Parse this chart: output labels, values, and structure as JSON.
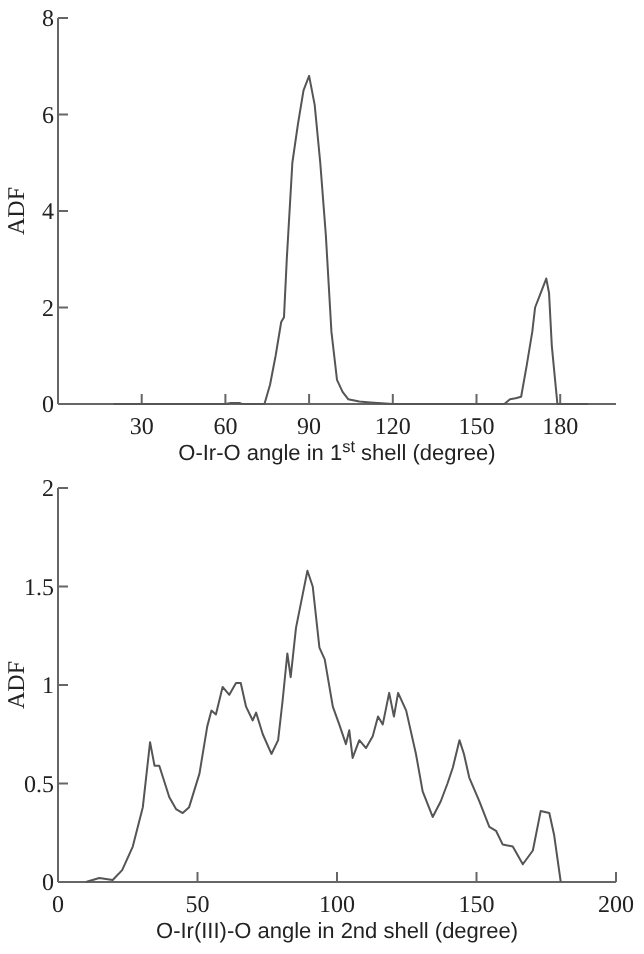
{
  "chart_data": [
    {
      "type": "line",
      "xlabel": "O-Ir-O angle in 1$^{st}$ shell (degree)",
      "ylabel": "ADF",
      "xlim": [
        0,
        200
      ],
      "ylim": [
        0,
        8
      ],
      "xticks": [
        30,
        60,
        90,
        120,
        150,
        180
      ],
      "yticks": [
        0,
        2,
        4,
        6,
        8
      ],
      "grid": false,
      "marker": "none",
      "line_style": "solid",
      "series": [
        {
          "color": "#555555",
          "x": [
            20,
            60,
            62,
            65,
            66,
            74,
            76,
            78,
            80,
            81,
            82,
            84,
            86,
            88,
            90,
            92,
            94,
            96,
            98,
            100,
            102,
            104,
            108,
            112,
            120,
            130,
            150,
            160,
            162,
            164,
            166,
            168,
            170,
            171,
            173,
            175,
            176,
            177,
            178,
            179,
            190
          ],
          "values": [
            0,
            0,
            0.02,
            0.02,
            0,
            0,
            0.4,
            1,
            1.7,
            1.8,
            3,
            5,
            5.8,
            6.5,
            6.8,
            6.2,
            5,
            3.5,
            1.5,
            0.5,
            0.25,
            0.1,
            0.05,
            0.03,
            0,
            0,
            0,
            0,
            0.1,
            0.12,
            0.15,
            0.8,
            1.5,
            2,
            2.3,
            2.6,
            2.3,
            1.2,
            0.6,
            0,
            0
          ]
        }
      ]
    },
    {
      "type": "line",
      "xlabel": "O-Ir(III)-O angle in 2nd shell (degree)",
      "ylabel": "ADF",
      "xlim": [
        0,
        200
      ],
      "ylim": [
        0,
        2
      ],
      "xticks": [
        0,
        50,
        100,
        150,
        200
      ],
      "yticks": [
        0,
        0.5,
        1,
        1.5,
        2
      ],
      "grid": false,
      "marker": "none",
      "line_style": "solid",
      "series": [
        {
          "color": "#555555",
          "x": [
            10,
            14.8,
            19.6,
            23,
            26.8,
            30.4,
            33,
            34.6,
            36.3,
            39.9,
            42.3,
            44.7,
            47,
            50.7,
            53.5,
            55,
            56.6,
            59,
            61.4,
            63.8,
            65.5,
            67.4,
            69.8,
            71,
            73.4,
            76.5,
            78.9,
            80.5,
            82.2,
            83.4,
            85.3,
            87.7,
            89.4,
            91.3,
            93.7,
            95.6,
            98.5,
            100.8,
            103.2,
            104.4,
            105.6,
            108,
            110.4,
            112.8,
            114.7,
            116.4,
            118.7,
            120.4,
            121.9,
            124.8,
            128.3,
            130.7,
            134.3,
            137.2,
            139.6,
            141.5,
            143.9,
            145.5,
            147.4,
            151,
            154.6,
            157,
            159.4,
            163,
            166.6,
            170.2,
            173,
            176.1,
            177.8,
            180.2
          ],
          "values": [
            0,
            0.02,
            0.01,
            0.06,
            0.18,
            0.38,
            0.71,
            0.59,
            0.59,
            0.43,
            0.37,
            0.35,
            0.38,
            0.55,
            0.79,
            0.87,
            0.85,
            0.99,
            0.95,
            1.01,
            1.01,
            0.89,
            0.82,
            0.86,
            0.75,
            0.65,
            0.72,
            0.92,
            1.16,
            1.04,
            1.29,
            1.46,
            1.58,
            1.5,
            1.19,
            1.13,
            0.89,
            0.8,
            0.7,
            0.77,
            0.63,
            0.72,
            0.68,
            0.74,
            0.84,
            0.8,
            0.96,
            0.84,
            0.96,
            0.87,
            0.65,
            0.46,
            0.33,
            0.41,
            0.5,
            0.58,
            0.72,
            0.65,
            0.53,
            0.41,
            0.28,
            0.26,
            0.19,
            0.18,
            0.09,
            0.16,
            0.36,
            0.35,
            0.24,
            0
          ]
        }
      ]
    }
  ]
}
